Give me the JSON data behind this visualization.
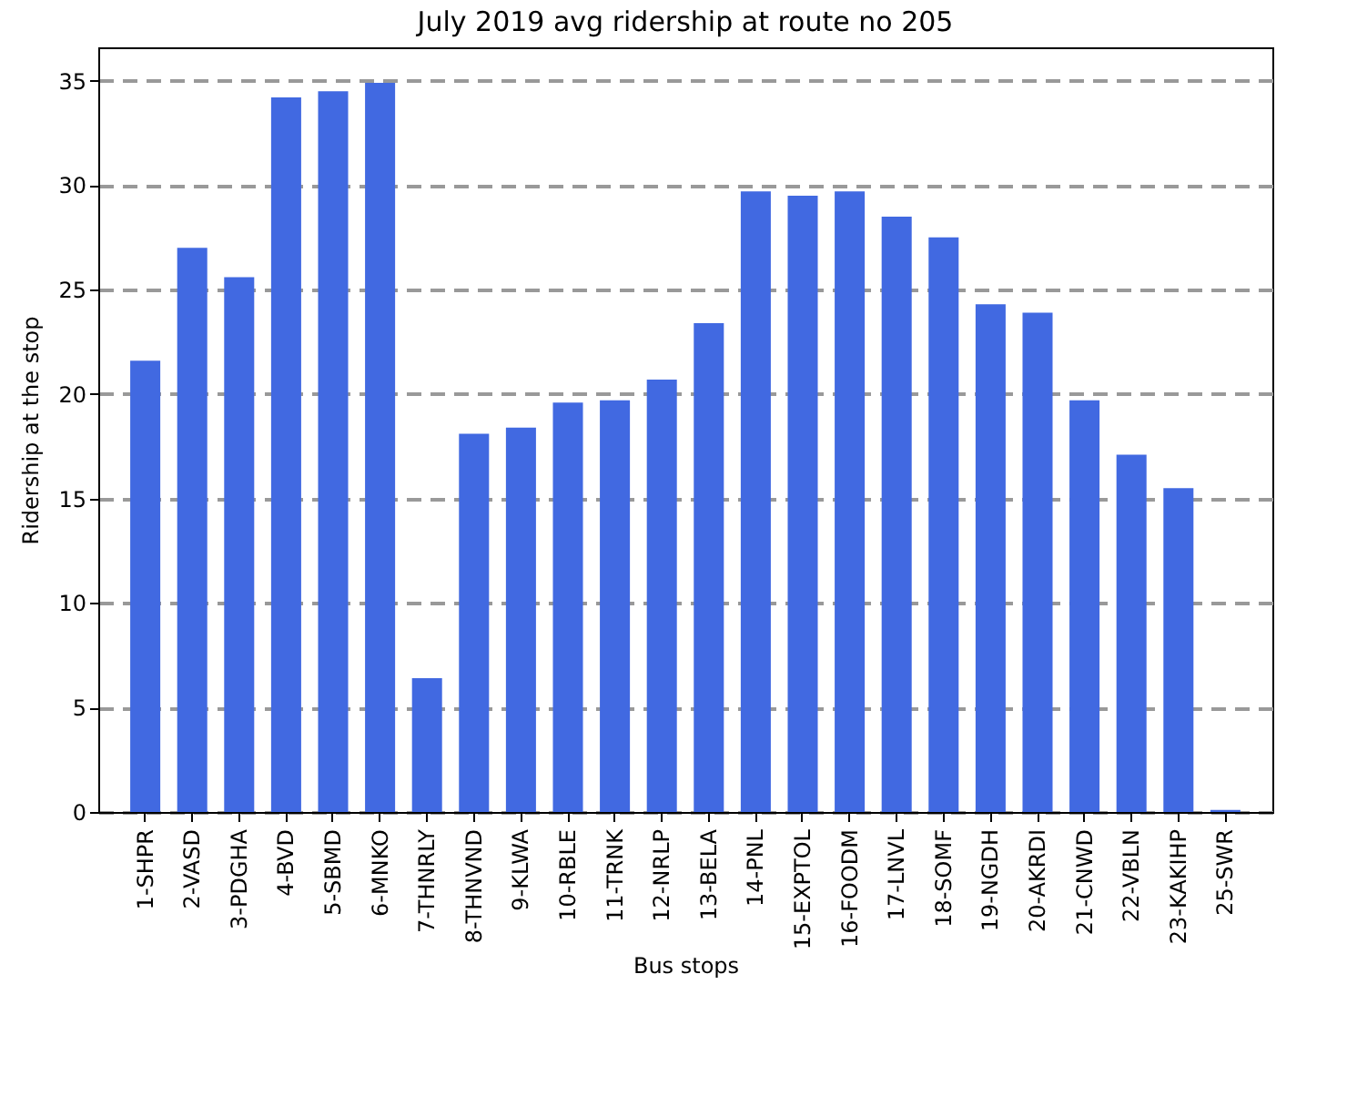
{
  "chart_data": {
    "type": "bar",
    "title": "July 2019 avg ridership at route no 205",
    "xlabel": "Bus stops",
    "ylabel": "Ridership at the stop",
    "categories": [
      "1-SHPR",
      "2-VASD",
      "3-PDGHA",
      "4-BVD",
      "5-SBMD",
      "6-MNKO",
      "7-THNRLY",
      "8-THNVND",
      "9-KLWA",
      "10-RBLE",
      "11-TRNK",
      "12-NRLP",
      "13-BELA",
      "14-PNL",
      "15-EXPTOL",
      "16-FOODM",
      "17-LNVL",
      "18-SOMF",
      "19-NGDH",
      "20-AKRDI",
      "21-CNWD",
      "22-VBLN",
      "23-KAKIHP",
      "25-SWR"
    ],
    "values": [
      21.6,
      27.0,
      25.6,
      34.2,
      34.5,
      34.9,
      6.4,
      18.1,
      18.4,
      19.6,
      19.7,
      20.7,
      23.4,
      29.7,
      29.5,
      29.7,
      28.5,
      27.5,
      24.3,
      23.9,
      19.7,
      17.1,
      15.5,
      0.1
    ],
    "color": "#4169e1",
    "ylim": [
      0,
      36.6
    ],
    "yticks": [
      0,
      5,
      10,
      15,
      20,
      25,
      30,
      35
    ],
    "grid": "y",
    "line_style": "dashed"
  }
}
